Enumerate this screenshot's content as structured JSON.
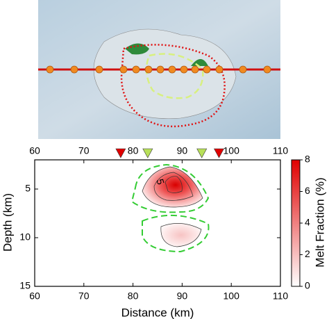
{
  "chart_data": {
    "type": "contour",
    "xlabel": "Distance (km)",
    "ylabel": "Depth (km)",
    "xlim": [
      60,
      110
    ],
    "xticks": [
      60,
      70,
      80,
      90,
      100,
      110
    ],
    "ylim": [
      2,
      15
    ],
    "yticks": [
      5,
      10,
      15
    ],
    "y_inverted": true,
    "contour_label": "5",
    "markers": [
      {
        "x": 77.5,
        "color": "#e00000"
      },
      {
        "x": 83,
        "color": "#b8e05a"
      },
      {
        "x": 94,
        "color": "#b8e05a"
      },
      {
        "x": 97.5,
        "color": "#e00000"
      }
    ],
    "colorbar": {
      "label": "Melt Fraction (%)",
      "lim": [
        0,
        8
      ],
      "ticks": [
        0,
        2,
        4,
        6,
        8
      ],
      "colors": [
        "#ffffff",
        "#e00000"
      ]
    }
  }
}
